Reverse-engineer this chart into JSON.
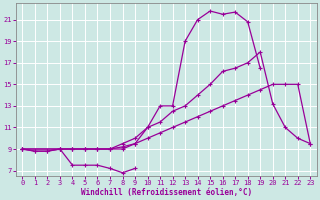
{
  "background_color": "#cde8e4",
  "grid_color": "#b0d8d4",
  "line_color": "#990099",
  "xlabel": "Windchill (Refroidissement éolien,°C)",
  "xlim": [
    -0.5,
    23.5
  ],
  "ylim": [
    6.5,
    22.5
  ],
  "yticks": [
    7,
    9,
    11,
    13,
    15,
    17,
    19,
    21
  ],
  "xticks": [
    0,
    1,
    2,
    3,
    4,
    5,
    6,
    7,
    8,
    9,
    10,
    11,
    12,
    13,
    14,
    15,
    16,
    17,
    18,
    19,
    20,
    21,
    22,
    23
  ],
  "line1_x": [
    0,
    1,
    2,
    3,
    4,
    5,
    6,
    7,
    8,
    9
  ],
  "line1_y": [
    9,
    8.8,
    8.8,
    9,
    7.5,
    7.5,
    7.5,
    7.2,
    6.8,
    7.2
  ],
  "line2_x": [
    0,
    1,
    2,
    3,
    4,
    5,
    6,
    7,
    8,
    9,
    10,
    11,
    12,
    13,
    14,
    15,
    16,
    17,
    18,
    19
  ],
  "line2_y": [
    9,
    8.8,
    8.8,
    9,
    9,
    9,
    9,
    9,
    9,
    9.5,
    11,
    13,
    13,
    19,
    21,
    21.8,
    21.5,
    21.7,
    20.8,
    16.5
  ],
  "line3_x": [
    0,
    3,
    4,
    5,
    6,
    7,
    8,
    9,
    10,
    11,
    12,
    13,
    14,
    15,
    16,
    17,
    18,
    19,
    20,
    21,
    22,
    23
  ],
  "line3_y": [
    9,
    9,
    9,
    9,
    9,
    9,
    9.5,
    10,
    11,
    11.5,
    12.5,
    13,
    14,
    15,
    16.2,
    16.5,
    17,
    18,
    13.2,
    11,
    10,
    9.5
  ],
  "line4_x": [
    0,
    3,
    4,
    5,
    6,
    7,
    8,
    9,
    10,
    11,
    12,
    13,
    14,
    15,
    16,
    17,
    18,
    19,
    20,
    21,
    22,
    23
  ],
  "line4_y": [
    9,
    9,
    9,
    9,
    9,
    9,
    9.2,
    9.5,
    10,
    10.5,
    11,
    11.5,
    12,
    12.5,
    13,
    13.5,
    14,
    14.5,
    15,
    15,
    15,
    9.5
  ]
}
